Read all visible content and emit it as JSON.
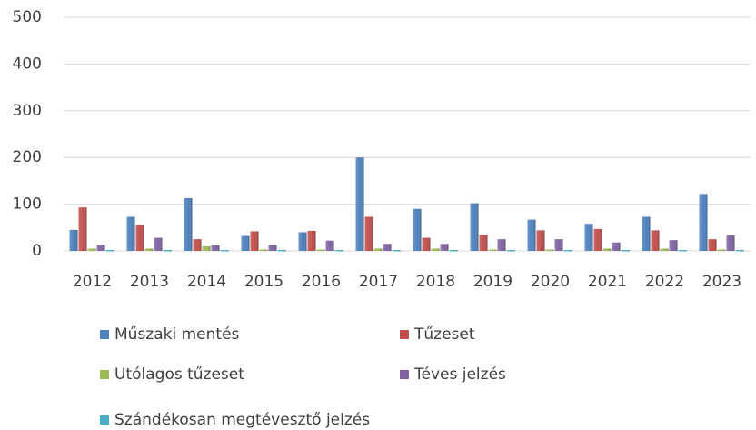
{
  "chart_data": {
    "type": "bar",
    "categories": [
      "2012",
      "2013",
      "2014",
      "2015",
      "2016",
      "2017",
      "2018",
      "2019",
      "2020",
      "2021",
      "2022",
      "2023"
    ],
    "series": [
      {
        "name": "Műszaki mentés",
        "color": "#4f81bd",
        "values": [
          45,
          73,
          113,
          32,
          40,
          200,
          90,
          102,
          67,
          58,
          73,
          122
        ]
      },
      {
        "name": "Tűzeset",
        "color": "#c0504d",
        "values": [
          93,
          55,
          25,
          42,
          43,
          73,
          28,
          35,
          44,
          47,
          44,
          25
        ]
      },
      {
        "name": "Utólagos tűzeset",
        "color": "#9bbb59",
        "values": [
          5,
          5,
          10,
          3,
          3,
          5,
          5,
          3,
          3,
          5,
          5,
          3
        ]
      },
      {
        "name": "Téves jelzés",
        "color": "#8064a2",
        "values": [
          12,
          28,
          12,
          12,
          22,
          15,
          15,
          25,
          25,
          18,
          23,
          33
        ]
      },
      {
        "name": "Szándékosan megtévesztő jelzés",
        "color": "#4bacc6",
        "values": [
          2,
          2,
          2,
          2,
          2,
          2,
          2,
          2,
          2,
          2,
          2,
          2
        ]
      }
    ],
    "ylim": [
      0,
      500
    ],
    "yticks": [
      0,
      100,
      200,
      300,
      400,
      500
    ],
    "grid": true,
    "legend": "bottom"
  }
}
